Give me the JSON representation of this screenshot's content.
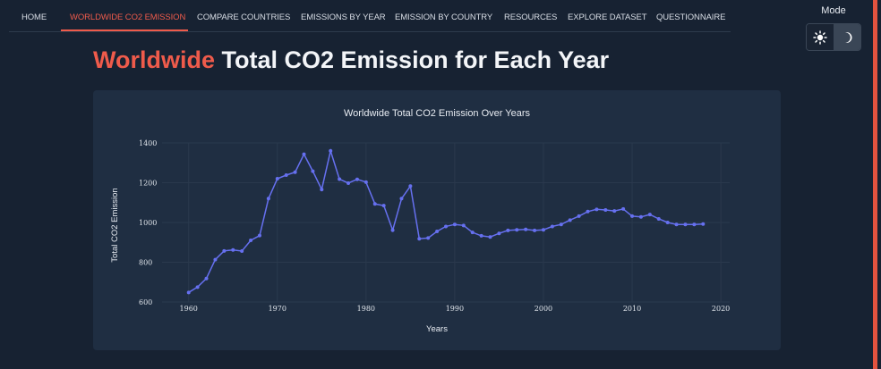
{
  "nav": {
    "items": [
      "HOME",
      "WORLDWIDE CO2 EMISSION",
      "COMPARE COUNTRIES",
      "EMISSIONS BY YEAR",
      "EMISSION BY COUNTRY",
      "RESOURCES",
      "EXPLORE DATASET",
      "QUESTIONNAIRE"
    ],
    "active_index": 1
  },
  "mode": {
    "label": "Mode",
    "selected": "dark"
  },
  "page": {
    "title_highlight": "Worldwide",
    "title_rest": " Total CO2 Emission for Each Year"
  },
  "colors": {
    "accent": "#ef5b4b",
    "series": "#6670f0",
    "background": "#172232",
    "card": "#1f2e42"
  },
  "chart_data": {
    "type": "line",
    "title": "Worldwide Total CO2 Emission Over Years",
    "xlabel": "Years",
    "ylabel": "Total CO2 Emission",
    "xlim": [
      1957,
      2021
    ],
    "ylim": [
      600,
      1400
    ],
    "xticks": [
      1960,
      1970,
      1980,
      1990,
      2000,
      2010,
      2020
    ],
    "yticks": [
      600,
      800,
      1000,
      1200,
      1400
    ],
    "grid": true,
    "series": [
      {
        "x": [
          1960,
          1961,
          1962,
          1963,
          1964,
          1965,
          1966,
          1967,
          1968,
          1969,
          1970,
          1971,
          1972,
          1973,
          1974,
          1975,
          1976,
          1977,
          1978,
          1979,
          1980,
          1981,
          1982,
          1983,
          1984,
          1985,
          1986,
          1987,
          1988,
          1989,
          1990,
          1991,
          1992,
          1993,
          1994,
          1995,
          1996,
          1997,
          1998,
          1999,
          2000,
          2001,
          2002,
          2003,
          2004,
          2005,
          2006,
          2007,
          2008,
          2009,
          2010,
          2011,
          2012,
          2013,
          2014,
          2015,
          2016,
          2017,
          2018
        ],
        "y": [
          648,
          675,
          718,
          813,
          857,
          862,
          856,
          910,
          934,
          1120,
          1220,
          1238,
          1253,
          1343,
          1258,
          1166,
          1360,
          1218,
          1198,
          1217,
          1203,
          1093,
          1085,
          961,
          1120,
          1183,
          918,
          922,
          955,
          980,
          990,
          985,
          950,
          933,
          927,
          945,
          960,
          963,
          965,
          960,
          963,
          980,
          990,
          1012,
          1032,
          1055,
          1066,
          1063,
          1058,
          1068,
          1032,
          1028,
          1040,
          1018,
          1000,
          990,
          990,
          990,
          992
        ]
      }
    ]
  }
}
